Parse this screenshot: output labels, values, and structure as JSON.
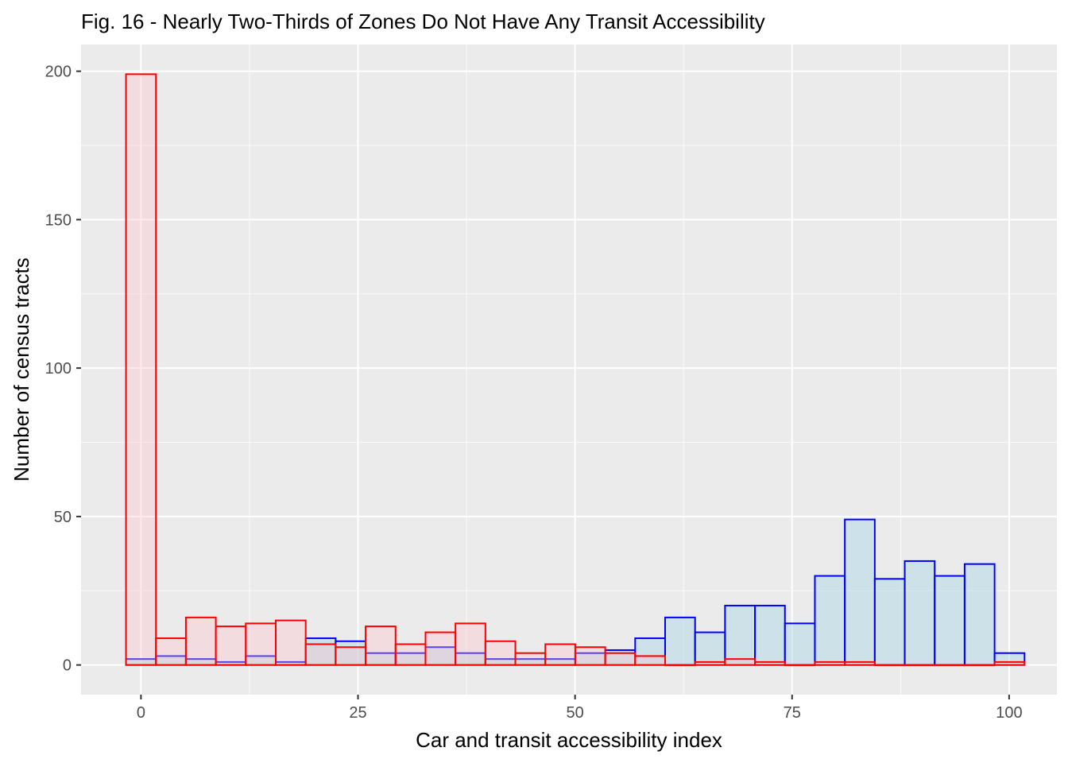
{
  "chart_data": {
    "type": "bar",
    "subtype": "histogram-overlay",
    "title": "Fig. 16 -  Nearly Two-Thirds of Zones Do Not Have Any Transit Accessibility",
    "xlabel": "Car and transit accessibility index",
    "ylabel": "Number of census tracts",
    "xlim": [
      -6.9,
      105.5
    ],
    "ylim": [
      -10,
      209
    ],
    "x_ticks": [
      0,
      25,
      50,
      75,
      100
    ],
    "x_tick_labels": [
      "0",
      "25",
      "50",
      "75",
      "100"
    ],
    "y_ticks": [
      0,
      50,
      100,
      150,
      200
    ],
    "y_tick_labels": [
      "0",
      "50",
      "100",
      "150",
      "200"
    ],
    "x_minor_ticks": [
      12.5,
      37.5,
      62.5,
      87.5
    ],
    "y_minor_ticks": [
      25,
      75,
      125,
      175
    ],
    "bin_width": 3.45,
    "bin_centers": [
      0,
      3.45,
      6.9,
      10.35,
      13.8,
      17.25,
      20.7,
      24.15,
      27.6,
      31.05,
      34.5,
      37.95,
      41.4,
      44.85,
      48.3,
      51.75,
      55.2,
      58.65,
      62.1,
      65.55,
      69.0,
      72.45,
      75.9,
      79.35,
      82.8,
      86.25,
      89.7,
      93.15,
      96.6,
      100.05
    ],
    "grid": true,
    "legend": "none",
    "background_color": "#ebebeb",
    "series": [
      {
        "key": "car",
        "color": "#0000ff",
        "fill": "#add8e6",
        "fill_opacity": 0.5,
        "values": [
          2,
          3,
          2,
          1,
          3,
          1,
          9,
          8,
          4,
          4,
          6,
          4,
          2,
          2,
          2,
          4,
          5,
          9,
          16,
          11,
          20,
          20,
          14,
          30,
          49,
          29,
          35,
          30,
          34,
          4
        ]
      },
      {
        "key": "transit",
        "color": "#ff0000",
        "fill": "#ffc0cb",
        "fill_opacity": 0.35,
        "values": [
          199,
          9,
          16,
          13,
          14,
          15,
          7,
          6,
          13,
          7,
          11,
          14,
          8,
          4,
          7,
          6,
          4,
          3,
          0,
          1,
          2,
          1,
          0,
          1,
          1,
          0,
          0,
          0,
          0,
          1
        ]
      }
    ]
  }
}
